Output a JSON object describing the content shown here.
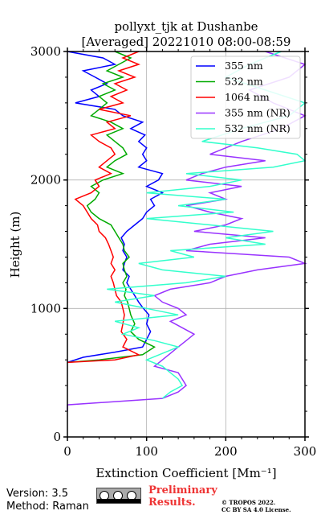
{
  "chart_data": {
    "type": "line",
    "title": "pollyxt_tjk at Dushanbe",
    "subtitle": "[Averaged] 20221010 08:00-08:59",
    "xlabel": "Extinction Coefficient [Mm⁻¹]",
    "ylabel": "Height (m)",
    "xlim": [
      0,
      300
    ],
    "ylim": [
      0,
      3000
    ],
    "xticks": [
      "0",
      "100",
      "200",
      "300"
    ],
    "yticks": [
      "0",
      "1000",
      "2000",
      "3000"
    ],
    "grid": true,
    "legend_position": "top-right",
    "colors": {
      "355": "#0000ff",
      "532": "#00aa00",
      "1064": "#ff0000",
      "355nr": "#9933ff",
      "532nr": "#33ffcc"
    },
    "series": [
      {
        "name": "355 nm",
        "color": "#0000ff",
        "height": [
          580,
          620,
          660,
          700,
          760,
          820,
          880,
          950,
          1000,
          1050,
          1100,
          1150,
          1200,
          1250,
          1300,
          1350,
          1400,
          1450,
          1500,
          1550,
          1600,
          1650,
          1700,
          1750,
          1800,
          1850,
          1900,
          1950,
          2000,
          2050,
          2100,
          2150,
          2200,
          2250,
          2300,
          2350,
          2400,
          2450,
          2500,
          2550,
          2600,
          2650,
          2700,
          2750,
          2800,
          2850,
          2900,
          2950,
          3000
        ],
        "values": [
          0,
          20,
          60,
          95,
          100,
          105,
          100,
          103,
          96,
          90,
          85,
          80,
          75,
          78,
          70,
          72,
          75,
          70,
          72,
          68,
          75,
          85,
          95,
          100,
          110,
          105,
          120,
          100,
          115,
          120,
          90,
          100,
          95,
          100,
          90,
          98,
          80,
          95,
          70,
          60,
          10,
          40,
          30,
          50,
          35,
          20,
          60,
          45,
          0
        ]
      },
      {
        "name": "532 nm",
        "color": "#00aa00",
        "height": [
          580,
          600,
          640,
          700,
          760,
          820,
          880,
          950,
          1000,
          1050,
          1100,
          1150,
          1200,
          1250,
          1300,
          1350,
          1400,
          1450,
          1500,
          1550,
          1600,
          1650,
          1700,
          1750,
          1800,
          1850,
          1900,
          1950,
          2000,
          2050,
          2100,
          2150,
          2200,
          2250,
          2300,
          2350,
          2400,
          2450,
          2500,
          2550,
          2600,
          2650,
          2700,
          2750,
          2800,
          2850,
          2900,
          2950,
          3000
        ],
        "values": [
          0,
          40,
          95,
          110,
          90,
          80,
          85,
          80,
          78,
          76,
          72,
          74,
          70,
          75,
          72,
          70,
          78,
          72,
          70,
          65,
          60,
          55,
          40,
          30,
          25,
          35,
          40,
          30,
          45,
          70,
          50,
          60,
          75,
          70,
          60,
          50,
          70,
          55,
          30,
          40,
          50,
          40,
          60,
          45,
          70,
          50,
          65,
          80,
          60
        ]
      },
      {
        "name": "1064 nm",
        "color": "#ff0000",
        "height": [
          580,
          600,
          640,
          700,
          760,
          820,
          880,
          950,
          1000,
          1050,
          1100,
          1150,
          1200,
          1250,
          1300,
          1350,
          1400,
          1450,
          1500,
          1550,
          1600,
          1650,
          1700,
          1750,
          1800,
          1850,
          1900,
          1950,
          2000,
          2050,
          2100,
          2150,
          2200,
          2250,
          2300,
          2350,
          2400,
          2450,
          2500,
          2550,
          2600,
          2650,
          2700,
          2750,
          2800,
          2850,
          2900,
          2950,
          3000
        ],
        "values": [
          0,
          60,
          90,
          70,
          75,
          68,
          70,
          72,
          70,
          68,
          62,
          60,
          58,
          55,
          60,
          55,
          58,
          55,
          52,
          48,
          40,
          38,
          30,
          25,
          20,
          10,
          30,
          40,
          35,
          55,
          40,
          50,
          60,
          55,
          40,
          30,
          60,
          50,
          80,
          40,
          70,
          55,
          75,
          60,
          85,
          65,
          90,
          70,
          90
        ]
      },
      {
        "name": "355 nm (NR)",
        "color": "#9933ff",
        "height": [
          200,
          250,
          300,
          350,
          400,
          450,
          500,
          550,
          600,
          650,
          700,
          750,
          800,
          850,
          900,
          950,
          1000,
          1050,
          1100,
          1150,
          1200,
          1250,
          1300,
          1350,
          1400,
          1450,
          1500,
          1550,
          1600,
          1650,
          1700,
          1750,
          1800,
          1850,
          1900,
          1950,
          2000,
          2050,
          2100,
          2150,
          2200,
          2300,
          2400,
          2500,
          2600,
          2700,
          2800,
          2900,
          3000
        ],
        "values": [
          0,
          0,
          120,
          140,
          150,
          145,
          140,
          110,
          120,
          130,
          140,
          150,
          160,
          145,
          130,
          150,
          140,
          120,
          110,
          130,
          180,
          200,
          240,
          300,
          280,
          150,
          180,
          250,
          160,
          200,
          220,
          180,
          150,
          200,
          180,
          220,
          150,
          170,
          200,
          250,
          180,
          220,
          270,
          300,
          260,
          230,
          280,
          300,
          250
        ]
      },
      {
        "name": "532 nm (NR)",
        "color": "#33ffcc",
        "height": [
          300,
          350,
          400,
          450,
          500,
          550,
          600,
          650,
          700,
          750,
          800,
          850,
          900,
          950,
          1000,
          1050,
          1100,
          1150,
          1200,
          1250,
          1300,
          1350,
          1400,
          1450,
          1500,
          1550,
          1600,
          1650,
          1700,
          1750,
          1800,
          1850,
          1900,
          1950,
          2000,
          2050,
          2100,
          2150,
          2200,
          2250,
          2300,
          2400,
          2500,
          2600,
          2700,
          2800,
          2900,
          3000
        ],
        "values": [
          120,
          130,
          145,
          140,
          130,
          120,
          100,
          120,
          140,
          110,
          70,
          90,
          60,
          140,
          100,
          60,
          110,
          50,
          150,
          200,
          120,
          90,
          160,
          130,
          250,
          200,
          260,
          180,
          100,
          210,
          140,
          200,
          100,
          180,
          220,
          150,
          260,
          300,
          290,
          240,
          170,
          220,
          280,
          300,
          250,
          200,
          230,
          270,
          250
        ]
      }
    ]
  },
  "footer": {
    "version": "Version: 3.5",
    "method": "Method: Raman",
    "preliminary_line1": "Preliminary",
    "preliminary_line2": "Results.",
    "copyright_line1": "© TROPOS 2022.",
    "copyright_line2": "CC BY SA 4.0 License.",
    "license_badge_text": "BY SA"
  }
}
